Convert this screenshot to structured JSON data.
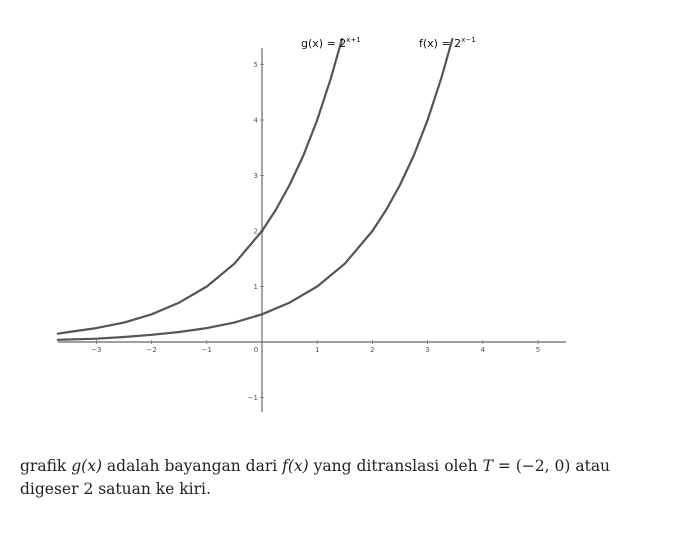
{
  "chart_data": {
    "type": "line",
    "xlim": [
      -3.7,
      5.5
    ],
    "ylim": [
      -1.3,
      5.7
    ],
    "xticks": [
      -3,
      -2,
      -1,
      0,
      1,
      2,
      3,
      4,
      5
    ],
    "yticks": [
      -1,
      1,
      2,
      3,
      4,
      5
    ],
    "grid": false,
    "series": [
      {
        "name": "g",
        "label_fn": "g(x) = 2",
        "label_exp": "x+1",
        "x": [
          -3.7,
          -3.5,
          -3,
          -2.5,
          -2,
          -1.5,
          -1,
          -0.5,
          0,
          0.25,
          0.5,
          0.75,
          1,
          1.25,
          1.45
        ],
        "y": [
          0.15,
          0.18,
          0.25,
          0.35,
          0.5,
          0.71,
          1,
          1.41,
          2,
          2.38,
          2.83,
          3.36,
          4,
          4.76,
          5.46
        ],
        "color": "#555555"
      },
      {
        "name": "f",
        "label_fn": "f(x) = 2",
        "label_exp": "x−1",
        "x": [
          -3.7,
          -3,
          -2.5,
          -2,
          -1.5,
          -1,
          -0.5,
          0,
          0.5,
          1,
          1.5,
          2,
          2.25,
          2.5,
          2.75,
          3,
          3.25,
          3.45
        ],
        "y": [
          0.04,
          0.06,
          0.09,
          0.13,
          0.18,
          0.25,
          0.35,
          0.5,
          0.71,
          1,
          1.41,
          2,
          2.38,
          2.83,
          3.36,
          4,
          4.76,
          5.46
        ],
        "color": "#555555"
      }
    ]
  },
  "caption": {
    "p1": "grafik ",
    "m1": "g(x)",
    "p2": " adalah bayangan dari ",
    "m2": "f(x)",
    "p3": " yang ditranslasi oleh ",
    "m3": "T",
    "p4": " = (−2, 0) atau",
    "line2": "digeser 2 satuan ke kiri."
  }
}
